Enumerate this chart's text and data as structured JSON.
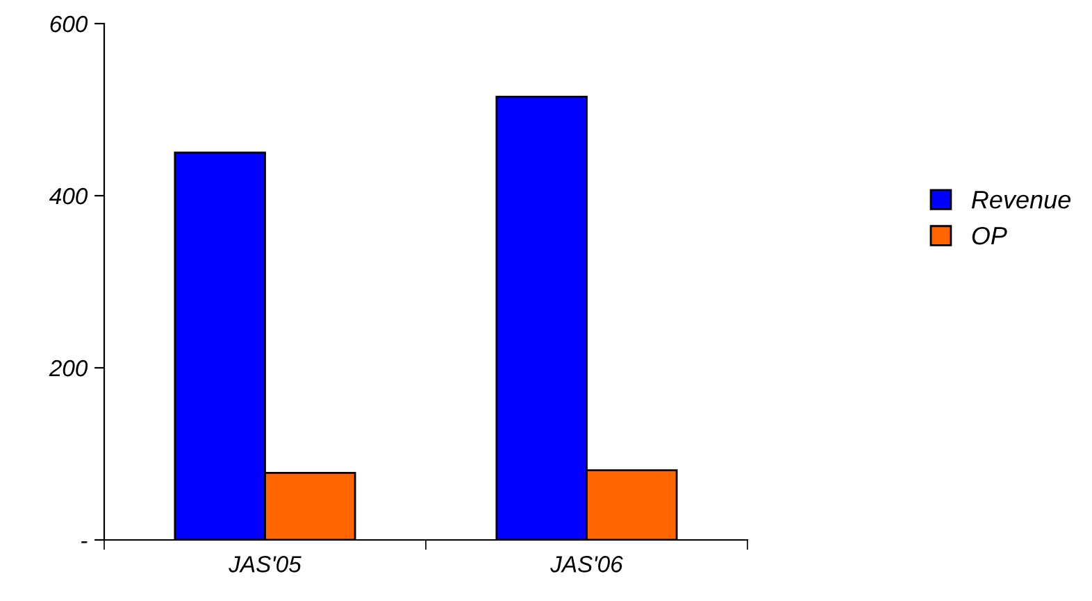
{
  "chart_data": {
    "type": "bar",
    "categories": [
      "JAS'05",
      "JAS'06"
    ],
    "series": [
      {
        "name": "Revenue",
        "color": "#0000ff",
        "values": [
          450,
          515
        ]
      },
      {
        "name": "OP",
        "color": "#ff6600",
        "values": [
          78,
          81
        ]
      }
    ],
    "ylim": [
      0,
      600
    ],
    "yticks": [
      {
        "value": 0,
        "label": "-"
      },
      200,
      400,
      600
    ],
    "grid": false,
    "legend": "right"
  }
}
